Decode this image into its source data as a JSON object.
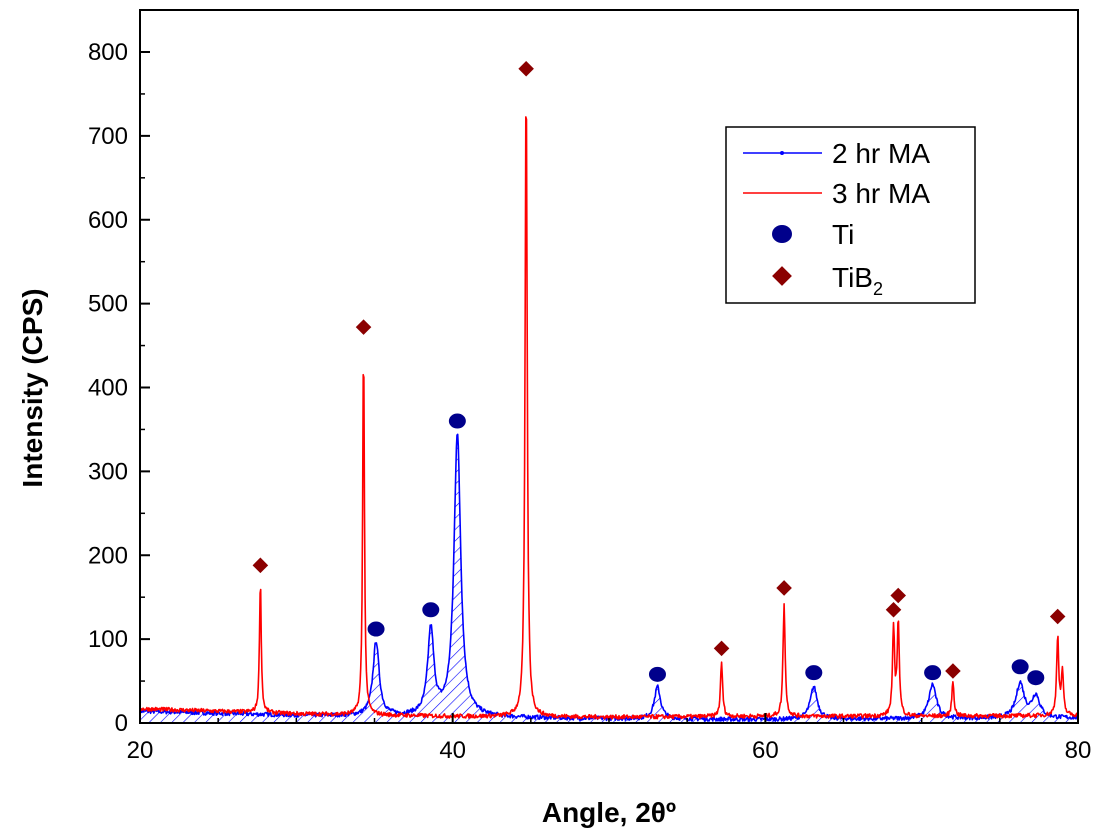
{
  "chart_data": {
    "type": "line",
    "title": "",
    "xlabel": "Angle, 2θº",
    "ylabel": "Intensity (CPS)",
    "xlim": [
      20,
      80
    ],
    "ylim": [
      0,
      850
    ],
    "x_ticks": [
      20,
      40,
      60,
      80
    ],
    "y_ticks": [
      0,
      100,
      200,
      300,
      400,
      500,
      600,
      700,
      800
    ],
    "grid": false,
    "legend_position": "top-right",
    "series": [
      {
        "name": "2 hr MA",
        "color": "#0000ff",
        "hatched_fill": true,
        "baseline": [
          [
            20,
            14
          ],
          [
            30,
            9
          ],
          [
            40,
            7
          ],
          [
            50,
            5
          ],
          [
            60,
            4
          ],
          [
            70,
            5
          ],
          [
            80,
            6
          ]
        ],
        "peaks": [
          {
            "x": 35.1,
            "y": 97,
            "width": 0.35
          },
          {
            "x": 38.6,
            "y": 110,
            "width": 0.35
          },
          {
            "x": 40.3,
            "y": 345,
            "width": 0.38
          },
          {
            "x": 53.1,
            "y": 43,
            "width": 0.35
          },
          {
            "x": 63.1,
            "y": 43,
            "width": 0.4
          },
          {
            "x": 70.7,
            "y": 46,
            "width": 0.42
          },
          {
            "x": 76.3,
            "y": 47,
            "width": 0.45
          },
          {
            "x": 77.3,
            "y": 32,
            "width": 0.45
          }
        ]
      },
      {
        "name": "3 hr MA",
        "color": "#ff0000",
        "hatched_fill": false,
        "baseline": [
          [
            20,
            17
          ],
          [
            30,
            11
          ],
          [
            40,
            8
          ],
          [
            50,
            7
          ],
          [
            60,
            8
          ],
          [
            70,
            8
          ],
          [
            80,
            9
          ]
        ],
        "peaks": [
          {
            "x": 27.7,
            "y": 170,
            "width": 0.1
          },
          {
            "x": 34.3,
            "y": 450,
            "width": 0.1
          },
          {
            "x": 44.7,
            "y": 765,
            "width": 0.12
          },
          {
            "x": 57.2,
            "y": 72,
            "width": 0.12
          },
          {
            "x": 61.2,
            "y": 143,
            "width": 0.12
          },
          {
            "x": 68.2,
            "y": 110,
            "width": 0.12
          },
          {
            "x": 68.5,
            "y": 120,
            "width": 0.12
          },
          {
            "x": 72.0,
            "y": 50,
            "width": 0.12
          },
          {
            "x": 78.7,
            "y": 103,
            "width": 0.12
          },
          {
            "x": 79.0,
            "y": 60,
            "width": 0.12
          }
        ]
      }
    ],
    "markers": [
      {
        "name": "Ti",
        "shape": "circle",
        "color": "#00008b",
        "points": [
          [
            35.1,
            112
          ],
          [
            38.6,
            135
          ],
          [
            40.3,
            360
          ],
          [
            53.1,
            58
          ],
          [
            63.1,
            60
          ],
          [
            70.7,
            60
          ],
          [
            76.3,
            67
          ],
          [
            77.3,
            54
          ]
        ]
      },
      {
        "name": "TiB",
        "name_subscript": "2",
        "shape": "diamond",
        "color": "#8b0000",
        "points": [
          [
            27.7,
            188
          ],
          [
            34.3,
            472
          ],
          [
            44.7,
            780
          ],
          [
            57.2,
            89
          ],
          [
            61.2,
            161
          ],
          [
            68.2,
            135
          ],
          [
            68.5,
            152
          ],
          [
            72.0,
            62
          ],
          [
            78.7,
            127
          ]
        ]
      }
    ]
  }
}
